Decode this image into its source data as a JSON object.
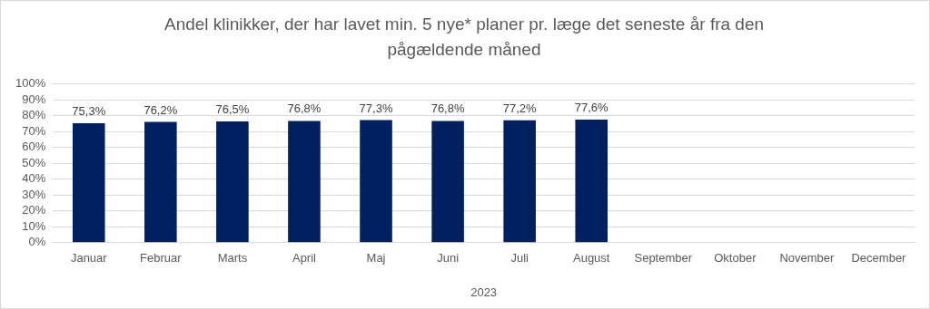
{
  "chart_data": {
    "type": "bar",
    "title": "Andel klinikker, der har lavet min. 5 nye* planer pr. læge det seneste år fra den pågældende måned",
    "xlabel": "2023",
    "categories": [
      "Januar",
      "Februar",
      "Marts",
      "April",
      "Maj",
      "Juni",
      "Juli",
      "August",
      "September",
      "Oktober",
      "November",
      "December"
    ],
    "values": [
      75.3,
      76.2,
      76.5,
      76.8,
      77.3,
      76.8,
      77.2,
      77.6,
      null,
      null,
      null,
      null
    ],
    "value_labels": [
      "75,3%",
      "76,2%",
      "76,5%",
      "76,8%",
      "77,3%",
      "76,8%",
      "77,2%",
      "77,6%",
      null,
      null,
      null,
      null
    ],
    "color": "#002060",
    "ylim": [
      0,
      100
    ],
    "yticks": [
      {
        "value": 0,
        "label": "0%"
      },
      {
        "value": 10,
        "label": "10%"
      },
      {
        "value": 20,
        "label": "20%"
      },
      {
        "value": 30,
        "label": "30%"
      },
      {
        "value": 40,
        "label": "40%"
      },
      {
        "value": 50,
        "label": "50%"
      },
      {
        "value": 60,
        "label": "60%"
      },
      {
        "value": 70,
        "label": "70%"
      },
      {
        "value": 80,
        "label": "80%"
      },
      {
        "value": 90,
        "label": "90%"
      },
      {
        "value": 100,
        "label": "100%"
      }
    ],
    "grid": "y",
    "legend": false
  }
}
